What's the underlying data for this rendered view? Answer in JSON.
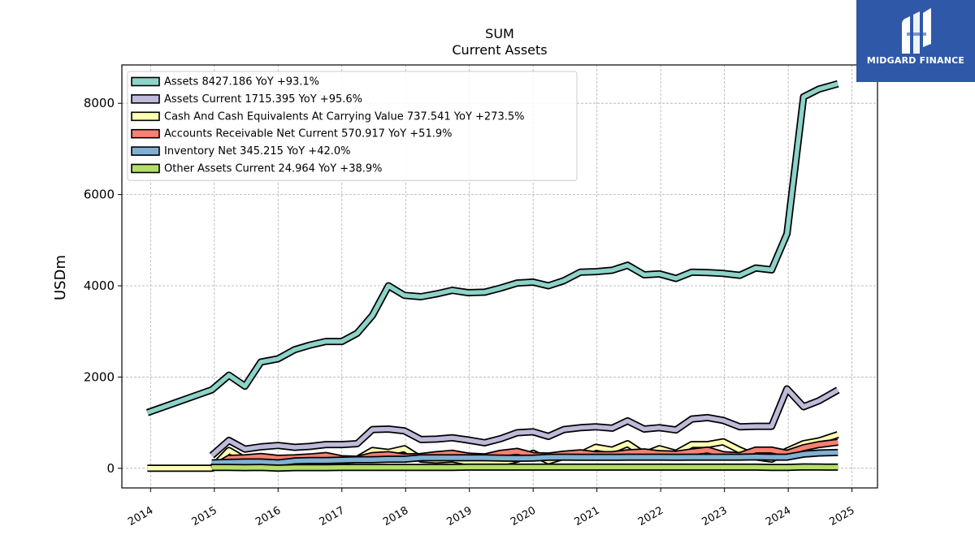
{
  "logo": {
    "text": "MIDGARD FINANCE",
    "bg_color": "#2f58a8"
  },
  "chart_data": {
    "type": "area",
    "title": "SUM",
    "subtitle": "Current  Assets",
    "ylabel": "USDm",
    "xlabel": "",
    "xlim": [
      2013.55,
      2025.4
    ],
    "ylim": [
      -430,
      8840
    ],
    "yticks": [
      0,
      2000,
      4000,
      6000,
      8000
    ],
    "xticks": [
      "2014",
      "2015",
      "2016",
      "2017",
      "2018",
      "2019",
      "2020",
      "2021",
      "2022",
      "2023",
      "2024",
      "2025"
    ],
    "grid": true,
    "legend_position": "top-left",
    "series": [
      {
        "name": "Assets  8427.186 YoY +93.1%",
        "color": "#8dd3c7",
        "values": [
          [
            2013.95,
            1220
          ],
          [
            2014.96,
            1720
          ],
          [
            2015.23,
            2040
          ],
          [
            2015.48,
            1800
          ],
          [
            2015.73,
            2330
          ],
          [
            2016.0,
            2400
          ],
          [
            2016.26,
            2600
          ],
          [
            2016.5,
            2700
          ],
          [
            2016.75,
            2780
          ],
          [
            2017.0,
            2780
          ],
          [
            2017.24,
            2960
          ],
          [
            2017.48,
            3350
          ],
          [
            2017.73,
            4000
          ],
          [
            2017.98,
            3790
          ],
          [
            2018.24,
            3760
          ],
          [
            2018.48,
            3820
          ],
          [
            2018.73,
            3900
          ],
          [
            2018.98,
            3850
          ],
          [
            2019.24,
            3860
          ],
          [
            2019.49,
            3950
          ],
          [
            2019.75,
            4060
          ],
          [
            2020.0,
            4080
          ],
          [
            2020.24,
            4000
          ],
          [
            2020.48,
            4110
          ],
          [
            2020.74,
            4300
          ],
          [
            2020.98,
            4310
          ],
          [
            2021.24,
            4340
          ],
          [
            2021.48,
            4450
          ],
          [
            2021.74,
            4240
          ],
          [
            2021.98,
            4260
          ],
          [
            2022.24,
            4160
          ],
          [
            2022.49,
            4300
          ],
          [
            2022.74,
            4290
          ],
          [
            2022.98,
            4270
          ],
          [
            2023.24,
            4230
          ],
          [
            2023.49,
            4390
          ],
          [
            2023.74,
            4350
          ],
          [
            2023.98,
            5140
          ],
          [
            2024.24,
            8140
          ],
          [
            2024.48,
            8310
          ],
          [
            2024.78,
            8427
          ]
        ]
      },
      {
        "name": "Assets Current  1715.395 YoY +95.6%",
        "color": "#bebada",
        "values": [
          [
            2014.96,
            280
          ],
          [
            2015.23,
            610
          ],
          [
            2015.48,
            420
          ],
          [
            2015.73,
            470
          ],
          [
            2016.0,
            500
          ],
          [
            2016.26,
            460
          ],
          [
            2016.5,
            480
          ],
          [
            2016.75,
            520
          ],
          [
            2017.0,
            520
          ],
          [
            2017.24,
            540
          ],
          [
            2017.48,
            850
          ],
          [
            2017.73,
            860
          ],
          [
            2017.98,
            820
          ],
          [
            2018.24,
            630
          ],
          [
            2018.48,
            640
          ],
          [
            2018.73,
            670
          ],
          [
            2018.98,
            620
          ],
          [
            2019.24,
            560
          ],
          [
            2019.49,
            650
          ],
          [
            2019.75,
            780
          ],
          [
            2020.0,
            800
          ],
          [
            2020.24,
            700
          ],
          [
            2020.48,
            850
          ],
          [
            2020.74,
            890
          ],
          [
            2020.98,
            910
          ],
          [
            2021.24,
            880
          ],
          [
            2021.48,
            1040
          ],
          [
            2021.74,
            860
          ],
          [
            2021.98,
            890
          ],
          [
            2022.24,
            840
          ],
          [
            2022.49,
            1080
          ],
          [
            2022.74,
            1110
          ],
          [
            2022.98,
            1050
          ],
          [
            2023.24,
            910
          ],
          [
            2023.49,
            920
          ],
          [
            2023.74,
            920
          ],
          [
            2023.98,
            1740
          ],
          [
            2024.24,
            1350
          ],
          [
            2024.48,
            1480
          ],
          [
            2024.78,
            1715
          ]
        ]
      },
      {
        "name": "Cash And Cash Equivalents At Carrying Value  737.541 YoY +273.5%",
        "color": "#ffffb3",
        "values": [
          [
            2013.95,
            0
          ],
          [
            2014.96,
            0
          ],
          [
            2015.23,
            390
          ],
          [
            2015.48,
            190
          ],
          [
            2015.73,
            230
          ],
          [
            2016.0,
            200
          ],
          [
            2016.26,
            190
          ],
          [
            2016.5,
            200
          ],
          [
            2016.75,
            190
          ],
          [
            2017.0,
            160
          ],
          [
            2017.24,
            200
          ],
          [
            2017.48,
            390
          ],
          [
            2017.73,
            350
          ],
          [
            2017.98,
            430
          ],
          [
            2018.24,
            200
          ],
          [
            2018.48,
            180
          ],
          [
            2018.73,
            200
          ],
          [
            2018.98,
            140
          ],
          [
            2019.24,
            140
          ],
          [
            2019.49,
            120
          ],
          [
            2019.75,
            200
          ],
          [
            2020.0,
            330
          ],
          [
            2020.24,
            160
          ],
          [
            2020.48,
            260
          ],
          [
            2020.74,
            300
          ],
          [
            2020.98,
            460
          ],
          [
            2021.24,
            400
          ],
          [
            2021.48,
            540
          ],
          [
            2021.74,
            300
          ],
          [
            2021.98,
            430
          ],
          [
            2022.24,
            330
          ],
          [
            2022.49,
            520
          ],
          [
            2022.74,
            520
          ],
          [
            2022.98,
            580
          ],
          [
            2023.24,
            400
          ],
          [
            2023.49,
            250
          ],
          [
            2023.74,
            200
          ],
          [
            2023.98,
            380
          ],
          [
            2024.24,
            540
          ],
          [
            2024.48,
            600
          ],
          [
            2024.78,
            738
          ]
        ]
      },
      {
        "name": "Accounts Receivable Net Current  570.917 YoY +51.9%",
        "color": "#fb8072",
        "values": [
          [
            2014.96,
            0
          ],
          [
            2015.23,
            220
          ],
          [
            2015.48,
            230
          ],
          [
            2015.73,
            260
          ],
          [
            2016.0,
            220
          ],
          [
            2016.26,
            230
          ],
          [
            2016.5,
            250
          ],
          [
            2016.75,
            280
          ],
          [
            2017.0,
            210
          ],
          [
            2017.24,
            200
          ],
          [
            2017.48,
            280
          ],
          [
            2017.73,
            300
          ],
          [
            2017.98,
            250
          ],
          [
            2018.24,
            260
          ],
          [
            2018.48,
            300
          ],
          [
            2018.73,
            330
          ],
          [
            2018.98,
            270
          ],
          [
            2019.24,
            250
          ],
          [
            2019.49,
            330
          ],
          [
            2019.75,
            370
          ],
          [
            2020.0,
            280
          ],
          [
            2020.24,
            270
          ],
          [
            2020.48,
            310
          ],
          [
            2020.74,
            340
          ],
          [
            2020.98,
            300
          ],
          [
            2021.24,
            300
          ],
          [
            2021.48,
            340
          ],
          [
            2021.74,
            360
          ],
          [
            2021.98,
            320
          ],
          [
            2022.24,
            310
          ],
          [
            2022.49,
            360
          ],
          [
            2022.74,
            400
          ],
          [
            2022.98,
            300
          ],
          [
            2023.24,
            280
          ],
          [
            2023.49,
            400
          ],
          [
            2023.74,
            400
          ],
          [
            2023.98,
            330
          ],
          [
            2024.24,
            450
          ],
          [
            2024.48,
            520
          ],
          [
            2024.78,
            571
          ]
        ]
      },
      {
        "name": "Inventory Net  345.215 YoY +42.0%",
        "color": "#80b1d3",
        "values": [
          [
            2014.96,
            120
          ],
          [
            2015.23,
            130
          ],
          [
            2015.48,
            140
          ],
          [
            2015.73,
            140
          ],
          [
            2016.0,
            120
          ],
          [
            2016.26,
            160
          ],
          [
            2016.5,
            170
          ],
          [
            2016.75,
            170
          ],
          [
            2017.0,
            180
          ],
          [
            2017.24,
            190
          ],
          [
            2017.48,
            190
          ],
          [
            2017.73,
            200
          ],
          [
            2017.98,
            200
          ],
          [
            2018.24,
            230
          ],
          [
            2018.48,
            230
          ],
          [
            2018.73,
            230
          ],
          [
            2018.98,
            230
          ],
          [
            2019.24,
            230
          ],
          [
            2019.49,
            225
          ],
          [
            2019.75,
            220
          ],
          [
            2020.0,
            225
          ],
          [
            2020.24,
            240
          ],
          [
            2020.48,
            245
          ],
          [
            2020.74,
            240
          ],
          [
            2020.98,
            240
          ],
          [
            2021.24,
            240
          ],
          [
            2021.48,
            245
          ],
          [
            2021.74,
            245
          ],
          [
            2021.98,
            245
          ],
          [
            2022.24,
            240
          ],
          [
            2022.49,
            245
          ],
          [
            2022.74,
            245
          ],
          [
            2022.98,
            245
          ],
          [
            2023.24,
            245
          ],
          [
            2023.49,
            250
          ],
          [
            2023.74,
            245
          ],
          [
            2023.98,
            245
          ],
          [
            2024.24,
            310
          ],
          [
            2024.48,
            335
          ],
          [
            2024.78,
            345
          ]
        ]
      },
      {
        "name": "Other Assets Current  24.964 YoY +38.9%",
        "color": "#b3de69",
        "values": [
          [
            2014.96,
            20
          ],
          [
            2015.23,
            20
          ],
          [
            2015.48,
            15
          ],
          [
            2015.73,
            20
          ],
          [
            2016.0,
            5
          ],
          [
            2016.26,
            15
          ],
          [
            2016.5,
            15
          ],
          [
            2016.75,
            15
          ],
          [
            2017.0,
            20
          ],
          [
            2017.24,
            20
          ],
          [
            2017.48,
            20
          ],
          [
            2017.73,
            20
          ],
          [
            2017.98,
            20
          ],
          [
            2018.24,
            20
          ],
          [
            2018.48,
            20
          ],
          [
            2018.73,
            20
          ],
          [
            2018.98,
            25
          ],
          [
            2019.24,
            25
          ],
          [
            2019.49,
            25
          ],
          [
            2019.75,
            25
          ],
          [
            2020.0,
            25
          ],
          [
            2020.24,
            25
          ],
          [
            2020.48,
            25
          ],
          [
            2020.74,
            25
          ],
          [
            2020.98,
            25
          ],
          [
            2021.24,
            25
          ],
          [
            2021.48,
            25
          ],
          [
            2021.74,
            25
          ],
          [
            2021.98,
            25
          ],
          [
            2022.24,
            25
          ],
          [
            2022.49,
            25
          ],
          [
            2022.74,
            25
          ],
          [
            2022.98,
            25
          ],
          [
            2023.24,
            25
          ],
          [
            2023.49,
            25
          ],
          [
            2023.74,
            20
          ],
          [
            2023.98,
            18
          ],
          [
            2024.24,
            30
          ],
          [
            2024.48,
            28
          ],
          [
            2024.78,
            25
          ]
        ]
      }
    ]
  }
}
